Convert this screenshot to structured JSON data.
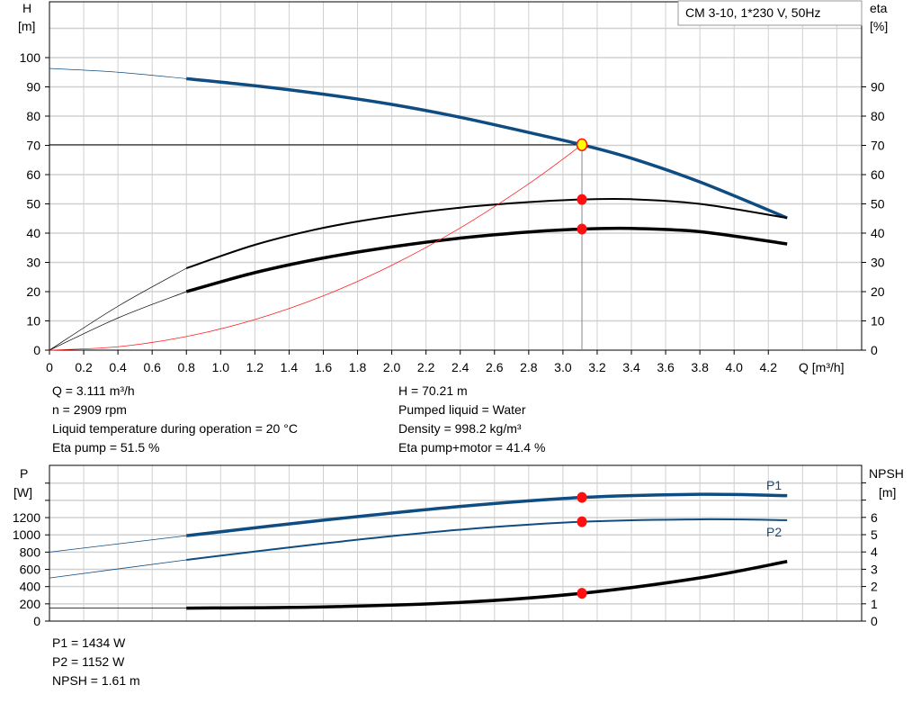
{
  "chart_data": [
    {
      "type": "line",
      "title": "CM 3-10, 1*230 V, 50Hz",
      "xlabel": "Q [m³/h]",
      "ylabel_left": [
        "H",
        "[m]"
      ],
      "ylabel_right": [
        "eta",
        "[%]"
      ],
      "xlim": [
        0,
        4.75
      ],
      "ylim": [
        0,
        119
      ],
      "x_ticks": [
        "0",
        "0.2",
        "0.4",
        "0.6",
        "0.8",
        "1.0",
        "1.2",
        "1.4",
        "1.6",
        "1.8",
        "2.0",
        "2.2",
        "2.4",
        "2.6",
        "2.8",
        "3.0",
        "3.2",
        "3.4",
        "3.6",
        "3.8",
        "4.0",
        "4.2"
      ],
      "y_ticks_left": [
        "0",
        "10",
        "20",
        "30",
        "40",
        "50",
        "60",
        "70",
        "80",
        "90",
        "100"
      ],
      "y_ticks_right": [
        "0",
        "10",
        "20",
        "30",
        "40",
        "50",
        "60",
        "70",
        "80",
        "90"
      ],
      "grid": true,
      "series": [
        {
          "id": "H",
          "color": "#0f4c81",
          "x": [
            0,
            0.4,
            0.8,
            1.2,
            1.6,
            2.0,
            2.4,
            2.8,
            3.111,
            3.4,
            3.8,
            4.31
          ],
          "values": [
            96.3,
            95.0,
            92.8,
            90.4,
            87.5,
            84.0,
            79.6,
            74.4,
            70.21,
            65.6,
            57.5,
            45.2
          ]
        },
        {
          "id": "eta_pump",
          "color": "#000000",
          "x": [
            0,
            0.4,
            0.8,
            1.2,
            1.6,
            2.0,
            2.4,
            2.8,
            3.111,
            3.4,
            3.8,
            4.31
          ],
          "values": [
            0,
            15,
            28,
            36,
            41.8,
            45.8,
            48.7,
            50.6,
            51.5,
            51.6,
            50.0,
            45.2
          ]
        },
        {
          "id": "eta_pump_motor",
          "color": "#000000",
          "x": [
            0,
            0.4,
            0.8,
            1.2,
            1.6,
            2.0,
            2.4,
            2.8,
            3.111,
            3.4,
            3.8,
            4.31
          ],
          "values": [
            0,
            11,
            20,
            26.5,
            31.5,
            35.3,
            38.3,
            40.4,
            41.4,
            41.6,
            40.5,
            36.3
          ]
        },
        {
          "id": "system_curve",
          "color": "#ff2020",
          "x": [
            0,
            0.4,
            0.8,
            1.2,
            1.6,
            2.0,
            2.4,
            2.8,
            3.111
          ],
          "values": [
            0,
            1.16,
            4.64,
            10.45,
            18.57,
            29.01,
            41.78,
            56.87,
            70.21
          ]
        }
      ],
      "duty_point": {
        "Q": 3.111,
        "H": 70.21,
        "eta_pump": 51.5,
        "eta_pump_motor": 41.4
      }
    },
    {
      "type": "line",
      "xlim": [
        0,
        4.75
      ],
      "ylabel_left": [
        "P",
        "[W]"
      ],
      "ylabel_right": [
        "NPSH",
        "[m]"
      ],
      "ylim_left": [
        0,
        1805
      ],
      "ylim_right": [
        0,
        9.0
      ],
      "y_ticks_left": [
        "0",
        "200",
        "400",
        "600",
        "800",
        "1000",
        "1200"
      ],
      "y_ticks_right": [
        "0",
        "1",
        "2",
        "3",
        "4",
        "5",
        "6"
      ],
      "grid": true,
      "series": [
        {
          "id": "P1",
          "name": "P1",
          "color": "#0f4c81",
          "axis": "left",
          "x": [
            0,
            0.8,
            1.6,
            2.4,
            3.111,
            3.8,
            4.31
          ],
          "values": [
            800,
            990,
            1170,
            1330,
            1434,
            1470,
            1455
          ]
        },
        {
          "id": "P2",
          "name": "P2",
          "color": "#0f4c81",
          "axis": "left",
          "x": [
            0,
            0.8,
            1.6,
            2.4,
            3.111,
            3.8,
            4.31
          ],
          "values": [
            500,
            710,
            900,
            1060,
            1152,
            1180,
            1170
          ]
        },
        {
          "id": "NPSH",
          "color": "#000000",
          "axis": "right",
          "x": [
            0,
            0.8,
            1.6,
            2.4,
            3.111,
            3.8,
            4.31
          ],
          "values": [
            0.75,
            0.75,
            0.82,
            1.08,
            1.61,
            2.5,
            3.45
          ]
        }
      ],
      "duty_point": {
        "Q": 3.111,
        "P1": 1434,
        "P2": 1152,
        "NPSH": 1.61
      }
    }
  ],
  "results": {
    "col1": [
      "Q = 3.111 m³/h",
      "n = 2909 rpm",
      "Liquid temperature during operation = 20 °C",
      "Eta pump = 51.5 %"
    ],
    "col2": [
      "H = 70.21 m",
      "Pumped liquid = Water",
      "Density = 998.2 kg/m³",
      "Eta pump+motor = 41.4 %"
    ],
    "bottom": [
      "P1 = 1434 W",
      "P2 = 1152 W",
      "NPSH = 1.61 m"
    ]
  }
}
